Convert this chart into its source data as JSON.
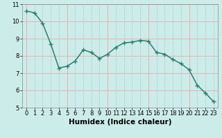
{
  "x": [
    0,
    1,
    2,
    3,
    4,
    5,
    6,
    7,
    8,
    9,
    10,
    11,
    12,
    13,
    14,
    15,
    16,
    17,
    18,
    19,
    20,
    21,
    22,
    23
  ],
  "y": [
    10.6,
    10.5,
    9.9,
    8.7,
    7.3,
    7.4,
    7.7,
    8.35,
    8.2,
    7.85,
    8.1,
    8.5,
    8.75,
    8.8,
    8.9,
    8.85,
    8.2,
    8.1,
    7.8,
    7.55,
    7.2,
    6.3,
    5.85,
    5.35
  ],
  "line_color": "#2e7d6e",
  "marker": "+",
  "marker_size": 4,
  "marker_edge_width": 1.0,
  "bg_color": "#ccecea",
  "grid_color_main": "#aed6d3",
  "grid_color_red": "#e8b0b0",
  "xlabel": "Humidex (Indice chaleur)",
  "xlim": [
    -0.5,
    23.5
  ],
  "ylim": [
    5,
    11
  ],
  "yticks": [
    5,
    6,
    7,
    8,
    9,
    10,
    11
  ],
  "xticks": [
    0,
    1,
    2,
    3,
    4,
    5,
    6,
    7,
    8,
    9,
    10,
    11,
    12,
    13,
    14,
    15,
    16,
    17,
    18,
    19,
    20,
    21,
    22,
    23
  ],
  "tick_label_size": 6,
  "xlabel_size": 7.5,
  "linewidth": 1.1,
  "red_grid_x": [
    0,
    5,
    10,
    15,
    20
  ],
  "red_grid_y": [
    5,
    6,
    7,
    8,
    9,
    10,
    11
  ]
}
